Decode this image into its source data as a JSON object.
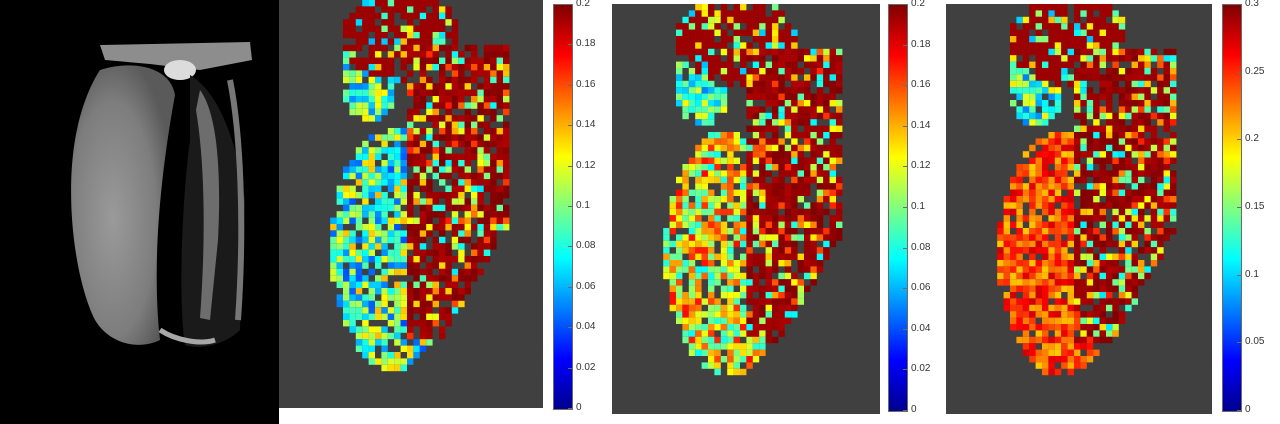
{
  "panels": [
    {
      "name": "mri-image"
    },
    {
      "name": "parameter-map-1",
      "colorbar": {
        "ticks": [
          "0.2",
          "0.18",
          "0.16",
          "0.14",
          "0.12",
          "0.1",
          "0.08",
          "0.06",
          "0.04",
          "0.02",
          "0"
        ],
        "min": 0,
        "max": 0.2
      }
    },
    {
      "name": "parameter-map-2",
      "colorbar": {
        "ticks": [
          "0.2",
          "0.18",
          "0.16",
          "0.14",
          "0.12",
          "0.1",
          "0.08",
          "0.06",
          "0.04",
          "0.02",
          "0"
        ],
        "min": 0,
        "max": 0.2
      }
    },
    {
      "name": "parameter-map-3",
      "colorbar": {
        "ticks": [
          "0.3",
          "0.25",
          "0.2",
          "0.15",
          "0.1",
          "0.05",
          "0"
        ],
        "min": 0,
        "max": 0.3
      }
    }
  ],
  "colors": {
    "background": "#404040",
    "colormap": "jet"
  }
}
